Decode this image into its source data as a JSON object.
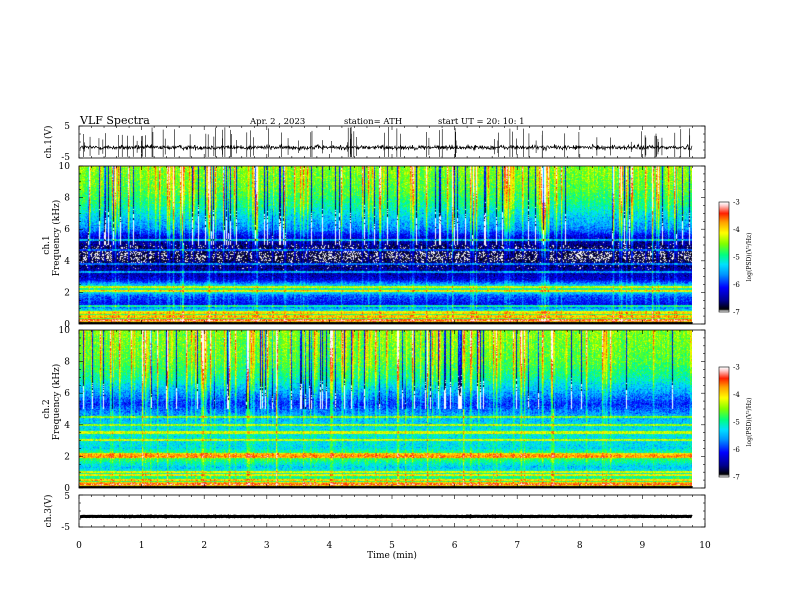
{
  "header": {
    "title": "VLF  Spectra",
    "date": "Apr. 2  , 2023",
    "station": "station= ATH",
    "start": "start  UT  =   20: 10: 1"
  },
  "colors": {
    "colormap": [
      "#ffffff",
      "#000000",
      "#00008c",
      "#0000ff",
      "#0096ff",
      "#00e0ff",
      "#00ff80",
      "#80ff00",
      "#ffff00",
      "#ffa000",
      "#ff2000",
      "#ffc8c8",
      "#ffffff"
    ]
  },
  "chart_data": [
    {
      "type": "line",
      "panel": "ch.1 waveform",
      "ylabel": "ch.1(V)",
      "ylim": [
        -5,
        5
      ],
      "y_ticks": [
        "5",
        "-5"
      ],
      "xlim": [
        0,
        10
      ],
      "trace_end_min": 9.8,
      "mean": -1.7,
      "noise_amplitude": 0.7,
      "spike_count": 90
    },
    {
      "type": "heatmap",
      "panel": "ch.1 spectrogram",
      "ylabel_1": "ch.1",
      "ylabel_2": "Frequency  (kHz)",
      "ylim": [
        0,
        10
      ],
      "y_ticks": [
        "10",
        "8",
        "6",
        "4",
        "2",
        "0"
      ],
      "xlim": [
        0,
        10
      ],
      "data_end_min": 9.8,
      "zlim": [
        -7,
        -3
      ],
      "frequency_profile": [
        {
          "f": 0.0,
          "z": -3.3
        },
        {
          "f": 0.3,
          "z": -4.7
        },
        {
          "f": 0.7,
          "z": -4.9
        },
        {
          "f": 1.2,
          "z": -6.2
        },
        {
          "f": 1.8,
          "z": -5.8
        },
        {
          "f": 2.1,
          "z": -4.9
        },
        {
          "f": 2.4,
          "z": -5.3
        },
        {
          "f": 2.8,
          "z": -6.3
        },
        {
          "f": 3.5,
          "z": -6.6
        },
        {
          "f": 4.2,
          "z": -6.9
        },
        {
          "f": 4.8,
          "z": -6.8
        },
        {
          "f": 5.5,
          "z": -6.3
        },
        {
          "f": 6.0,
          "z": -5.7
        },
        {
          "f": 6.7,
          "z": -5.4
        },
        {
          "f": 7.5,
          "z": -5.0
        },
        {
          "f": 8.5,
          "z": -4.7
        },
        {
          "f": 10.0,
          "z": -4.5
        }
      ],
      "lines_khz": [
        0.2,
        0.45,
        0.7,
        1.1,
        2.05,
        2.3,
        3.3,
        3.8,
        4.7,
        5.3
      ],
      "sferic_count": 110
    },
    {
      "type": "heatmap",
      "panel": "ch.2 spectrogram",
      "ylabel_1": "ch.2",
      "ylabel_2": "Frequency  (kHz)",
      "ylim": [
        0,
        10
      ],
      "y_ticks": [
        "10",
        "8",
        "6",
        "4",
        "2",
        "0"
      ],
      "xlim": [
        0,
        10
      ],
      "data_end_min": 9.8,
      "zlim": [
        -7,
        -3
      ],
      "frequency_profile": [
        {
          "f": 0.0,
          "z": -3.3
        },
        {
          "f": 0.3,
          "z": -4.8
        },
        {
          "f": 0.8,
          "z": -5.0
        },
        {
          "f": 1.3,
          "z": -5.4
        },
        {
          "f": 2.0,
          "z": -4.6
        },
        {
          "f": 2.5,
          "z": -5.3
        },
        {
          "f": 3.5,
          "z": -5.2
        },
        {
          "f": 4.5,
          "z": -5.5
        },
        {
          "f": 5.3,
          "z": -6.0
        },
        {
          "f": 6.0,
          "z": -5.6
        },
        {
          "f": 7.0,
          "z": -5.0
        },
        {
          "f": 8.0,
          "z": -4.7
        },
        {
          "f": 10.0,
          "z": -4.5
        }
      ],
      "lines_khz": [
        0.25,
        0.5,
        0.8,
        1.0,
        1.95,
        2.1,
        3.0,
        3.5,
        4.0,
        4.5
      ],
      "sferic_count": 110
    },
    {
      "type": "line",
      "panel": "ch.3 waveform",
      "ylabel": "ch.3(V)",
      "ylim": [
        -5,
        5
      ],
      "y_ticks": [
        "5",
        "-5"
      ],
      "xlim": [
        0,
        10
      ],
      "trace_end_min": 9.8,
      "mean": -1.7,
      "noise_amplitude": 0.08,
      "xlabel": "Time  (min)",
      "x_ticks": [
        "0",
        "1",
        "2",
        "3",
        "4",
        "5",
        "6",
        "7",
        "8",
        "9",
        "10"
      ]
    }
  ],
  "colorbars": [
    {
      "label": "log(PSD)(V²/Hz)",
      "ticks": [
        "-3",
        "-4",
        "-5",
        "-6",
        "-7"
      ]
    },
    {
      "label": "log(PSD)(V²/Hz)",
      "ticks": [
        "-3",
        "-4",
        "-5",
        "-6",
        "-7"
      ]
    }
  ]
}
